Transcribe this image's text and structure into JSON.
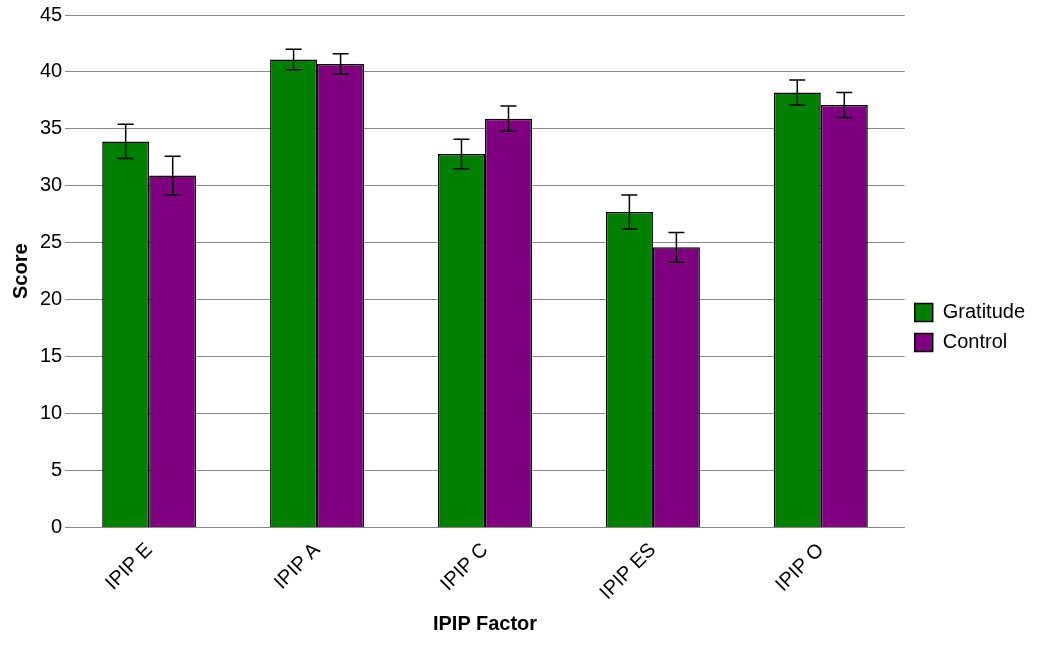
{
  "chart_data": {
    "type": "bar",
    "xlabel": "IPIP Factor",
    "ylabel": "Score",
    "categories": [
      "IPIP E",
      "IPIP A",
      "IPIP C",
      "IPIP ES",
      "IPIP O"
    ],
    "series": [
      {
        "name": "Gratitude",
        "color": "#008000",
        "values": [
          33.9,
          41.1,
          32.8,
          27.7,
          38.2
        ],
        "errors": [
          1.5,
          0.9,
          1.3,
          1.5,
          1.1
        ]
      },
      {
        "name": "Control",
        "color": "#800080",
        "values": [
          30.9,
          40.7,
          35.9,
          24.6,
          37.1
        ],
        "errors": [
          1.7,
          0.9,
          1.1,
          1.3,
          1.1
        ]
      }
    ],
    "ylim": [
      0,
      45
    ],
    "yticks": [
      0,
      5,
      10,
      15,
      20,
      25,
      30,
      35,
      40,
      45
    ],
    "grid": "y",
    "legend": "right"
  }
}
